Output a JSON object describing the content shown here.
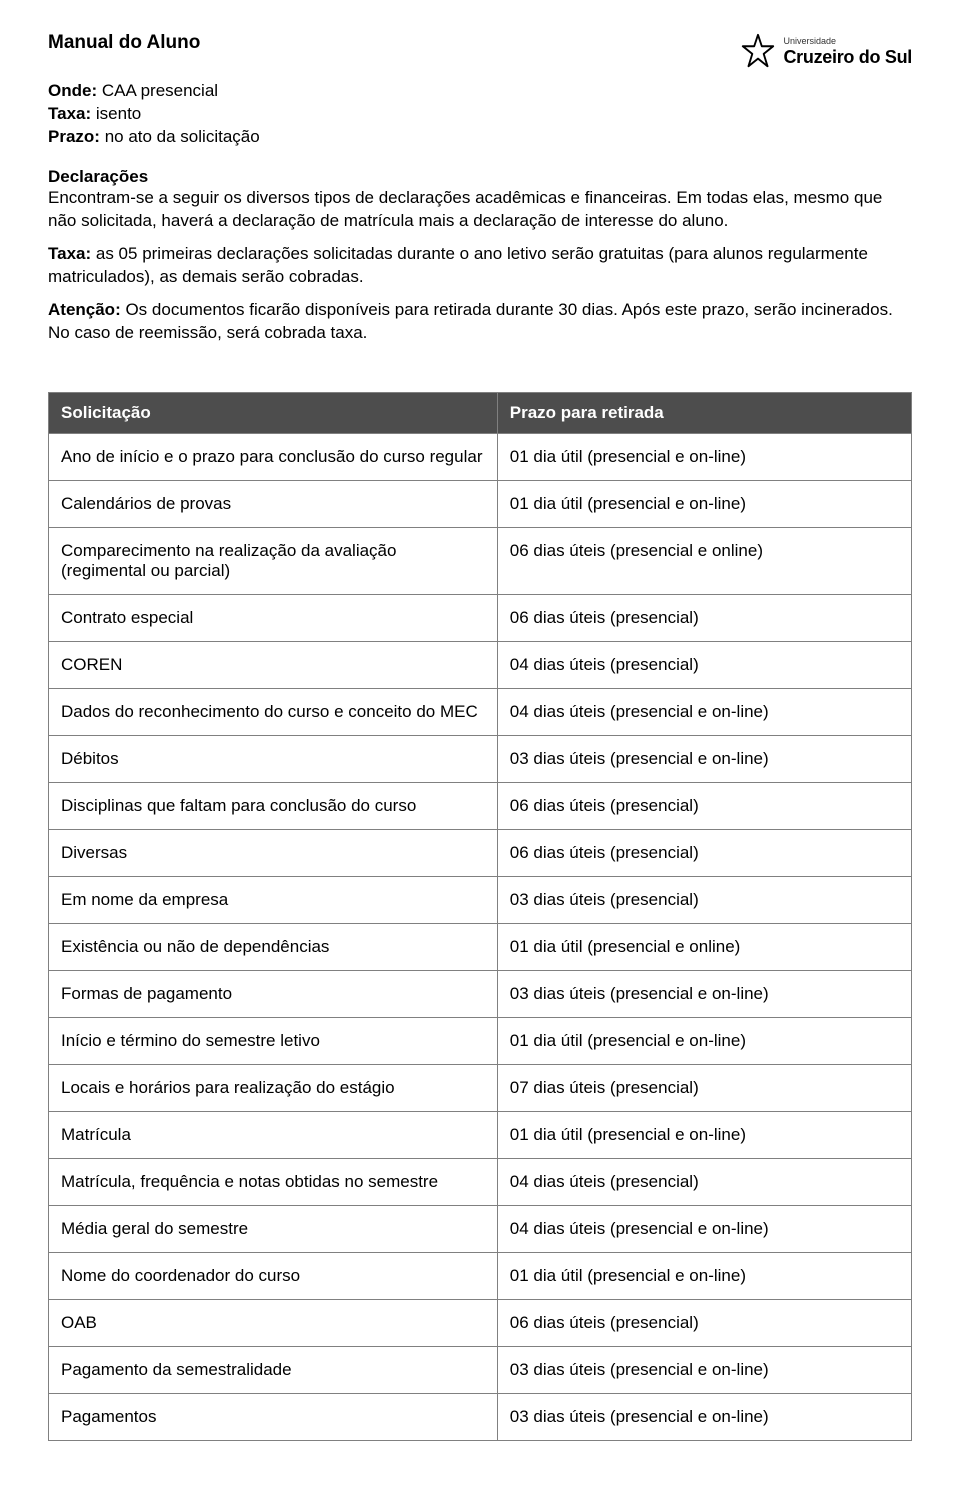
{
  "doc": {
    "title": "Manual do Aluno",
    "logo": {
      "small": "Universidade",
      "main": "Cruzeiro do Sul",
      "star_color": "#000000"
    },
    "meta": {
      "onde_label": "Onde:",
      "onde_value": " CAA presencial",
      "taxa_label": "Taxa:",
      "taxa_value": " isento",
      "prazo_label": "Prazo:",
      "prazo_value": " no ato da solicitação"
    },
    "declaracoes": {
      "heading": "Declarações",
      "p1": "Encontram-se a seguir os diversos tipos de declarações acadêmicas e financeiras. Em todas elas, mesmo que não solicitada, haverá a declaração de matrícula mais a declaração de interesse do aluno.",
      "taxa_label": "Taxa:",
      "taxa_text": " as 05 primeiras declarações solicitadas durante o ano letivo serão gratuitas (para alunos regularmente matriculados), as demais serão cobradas.",
      "atencao_label": "Atenção:",
      "atencao_text": " Os documentos ficarão disponíveis para retirada durante 30 dias. Após este prazo, serão incinerados. No caso de reemissão, será cobrada taxa."
    }
  },
  "table": {
    "header": {
      "left": "Solicitação",
      "right": "Prazo para retirada",
      "bg": "#4d4d4d",
      "fg": "#ffffff",
      "border": "#808080"
    },
    "rows": [
      {
        "left": "Ano de início e o prazo para conclusão do curso regular",
        "right": "01 dia útil (presencial e on-line)"
      },
      {
        "left": "Calendários de provas",
        "right": "01 dia útil (presencial e on-line)"
      },
      {
        "left": "Comparecimento na realização da avaliação (regimental ou parcial)",
        "right": "06 dias úteis (presencial e online)"
      },
      {
        "left": "Contrato especial",
        "right": "06 dias úteis (presencial)"
      },
      {
        "left": "COREN",
        "right": "04 dias úteis (presencial)"
      },
      {
        "left": "Dados do reconhecimento do curso e conceito do MEC",
        "right": "04 dias úteis (presencial e on-line)"
      },
      {
        "left": "Débitos",
        "right": "03 dias úteis (presencial e on-line)"
      },
      {
        "left": "Disciplinas que faltam para conclusão do curso",
        "right": "06 dias úteis (presencial)"
      },
      {
        "left": "Diversas",
        "right": "06 dias úteis (presencial)"
      },
      {
        "left": "Em nome da empresa",
        "right": "03 dias úteis (presencial)"
      },
      {
        "left": "Existência ou não de dependências",
        "right": "01 dia útil (presencial e online)"
      },
      {
        "left": "Formas de pagamento",
        "right": "03 dias úteis (presencial e on-line)"
      },
      {
        "left": "Início e término do semestre letivo",
        "right": "01 dia útil (presencial e on-line)"
      },
      {
        "left": "Locais e horários para realização do estágio",
        "right": "07 dias úteis (presencial)"
      },
      {
        "left": "Matrícula",
        "right": "01 dia útil (presencial e on-line)"
      },
      {
        "left": "Matrícula, frequência e notas obtidas no semestre",
        "right": "04 dias úteis (presencial)"
      },
      {
        "left": "Média geral do semestre",
        "right": "04 dias úteis (presencial e on-line)"
      },
      {
        "left": "Nome do coordenador do curso",
        "right": "01 dia útil  (presencial e on-line)"
      },
      {
        "left": "OAB",
        "right": "06 dias úteis (presencial)"
      },
      {
        "left": "Pagamento da semestralidade",
        "right": "03 dias úteis (presencial e on-line)"
      },
      {
        "left": "Pagamentos",
        "right": "03 dias úteis (presencial e on-line)"
      }
    ]
  }
}
